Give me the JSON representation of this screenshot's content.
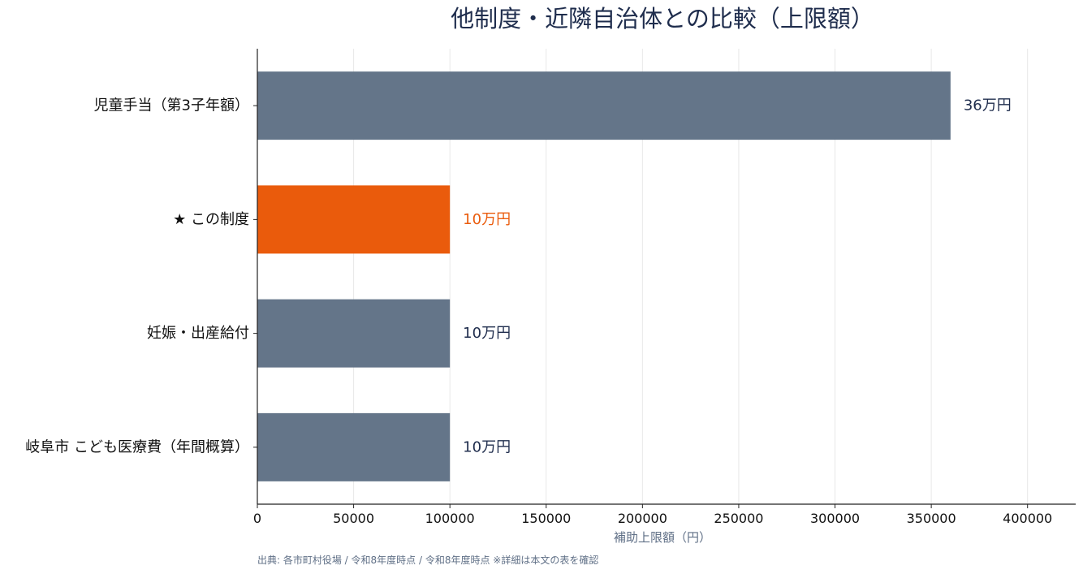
{
  "chart_data": {
    "type": "bar",
    "orientation": "horizontal",
    "title": "他制度・近隣自治体との比較（上限額）",
    "xlabel": "補助上限額（円）",
    "ylabel": "",
    "categories": [
      "児童手当（第3子年額）",
      "★ この制度",
      "妊娠・出産給付",
      "岐阜市 こども医療費（年間概算）"
    ],
    "values": [
      360000,
      100000,
      100000,
      100000
    ],
    "data_labels": [
      "36万円",
      "10万円",
      "10万円",
      "10万円"
    ],
    "highlight_index": 1,
    "xlim": [
      0,
      425000
    ],
    "xticks": [
      0,
      50000,
      100000,
      150000,
      200000,
      250000,
      300000,
      350000,
      400000
    ],
    "grid": "x",
    "legend": "none"
  },
  "colors": {
    "bar_default": "#647589",
    "bar_highlight": "#ea5b0c",
    "label_default": "#1f2d4d",
    "label_highlight": "#ea5b0c",
    "title": "#1f2d4d",
    "axis_title": "#5f6f86",
    "grid": "#e8e8e8",
    "axis": "#222222"
  },
  "source": "出典: 各市町村役場 / 令和8年度時点 / 令和8年度時点 ※詳細は本文の表を確認"
}
